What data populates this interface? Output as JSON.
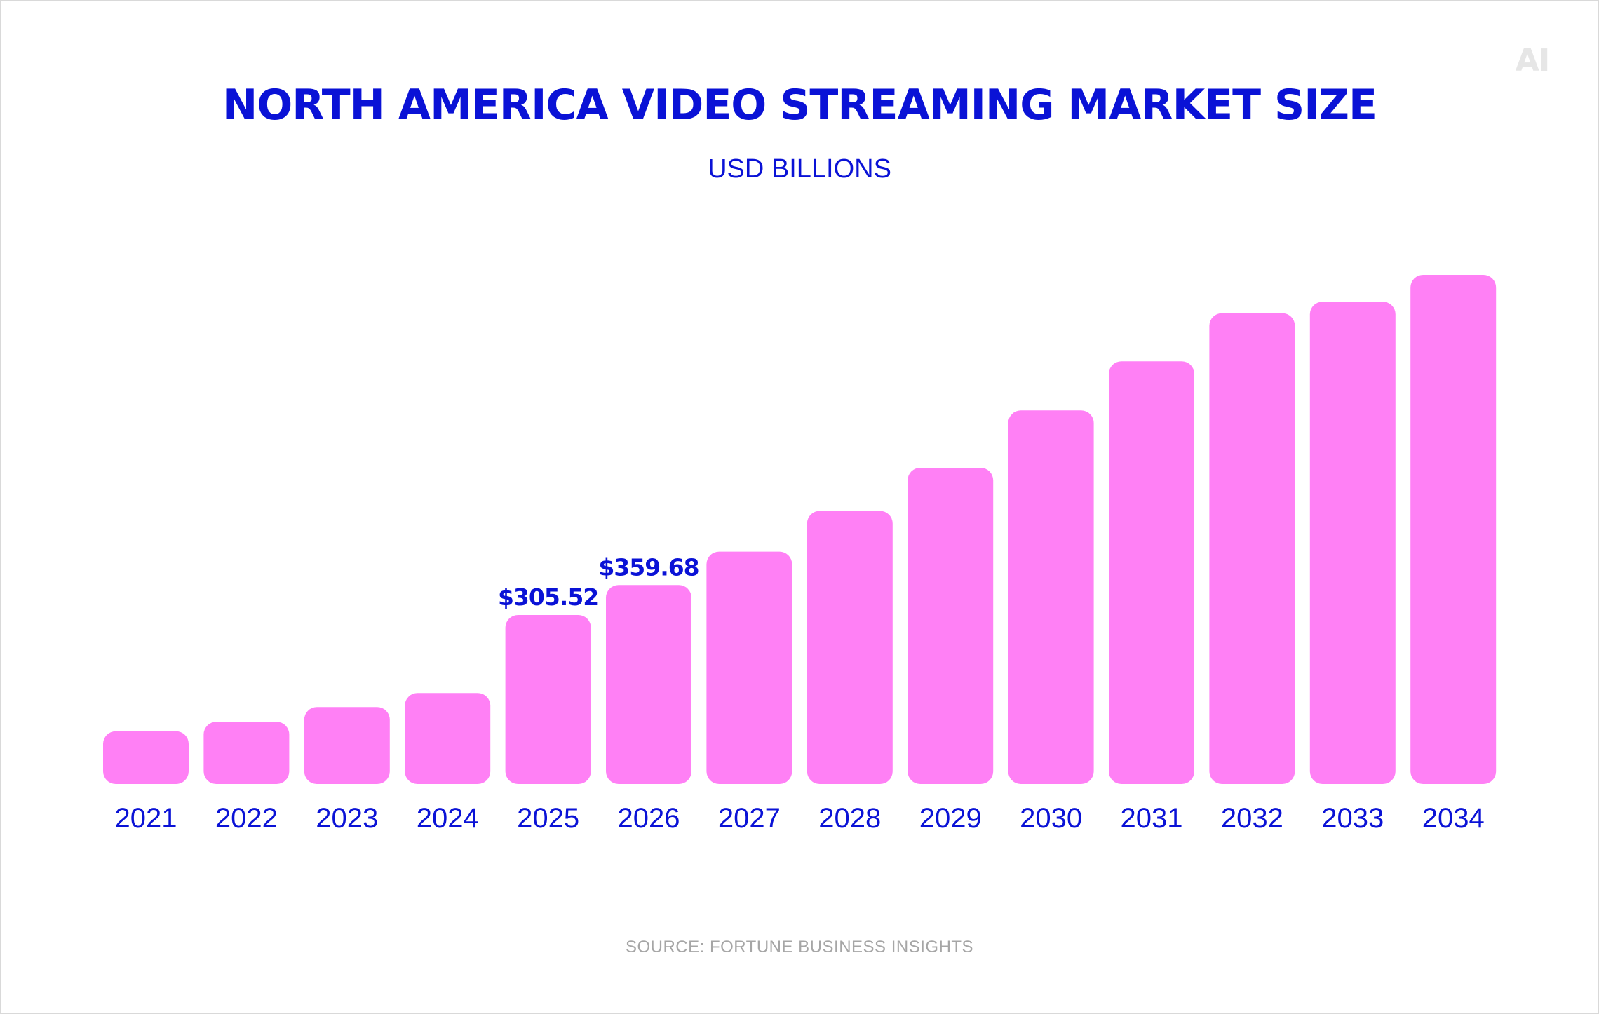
{
  "logo_text": "AI",
  "source": "SOURCE: FORTUNE BUSINESS INSIGHTS",
  "colors": {
    "bar": "#ff80f5",
    "text": "#0a12d6",
    "source": "#a6a6a6",
    "border": "#d9d9d9"
  },
  "chart_data": {
    "type": "bar",
    "title": "NORTH AMERICA VIDEO STREAMING MARKET SIZE",
    "subtitle": "USD BILLIONS",
    "xlabel": "",
    "ylabel": "",
    "grid": false,
    "legend": "none",
    "categories": [
      "2021",
      "2022",
      "2023",
      "2024",
      "2025",
      "2026",
      "2027",
      "2028",
      "2029",
      "2030",
      "2031",
      "2032",
      "2033",
      "2034"
    ],
    "values": [
      95.4,
      112.5,
      139.1,
      164.4,
      305.52,
      359.68,
      420.1,
      493.7,
      571.7,
      675.3,
      764.1,
      851.1,
      871.9,
      920.3
    ],
    "data_labels": [
      "",
      "",
      "",
      "",
      "$305.52",
      "$359.68",
      "",
      "",
      "",
      "",
      "",
      "",
      "",
      ""
    ],
    "ylim": [
      0,
      920.3
    ],
    "y_axis_shown": false
  }
}
